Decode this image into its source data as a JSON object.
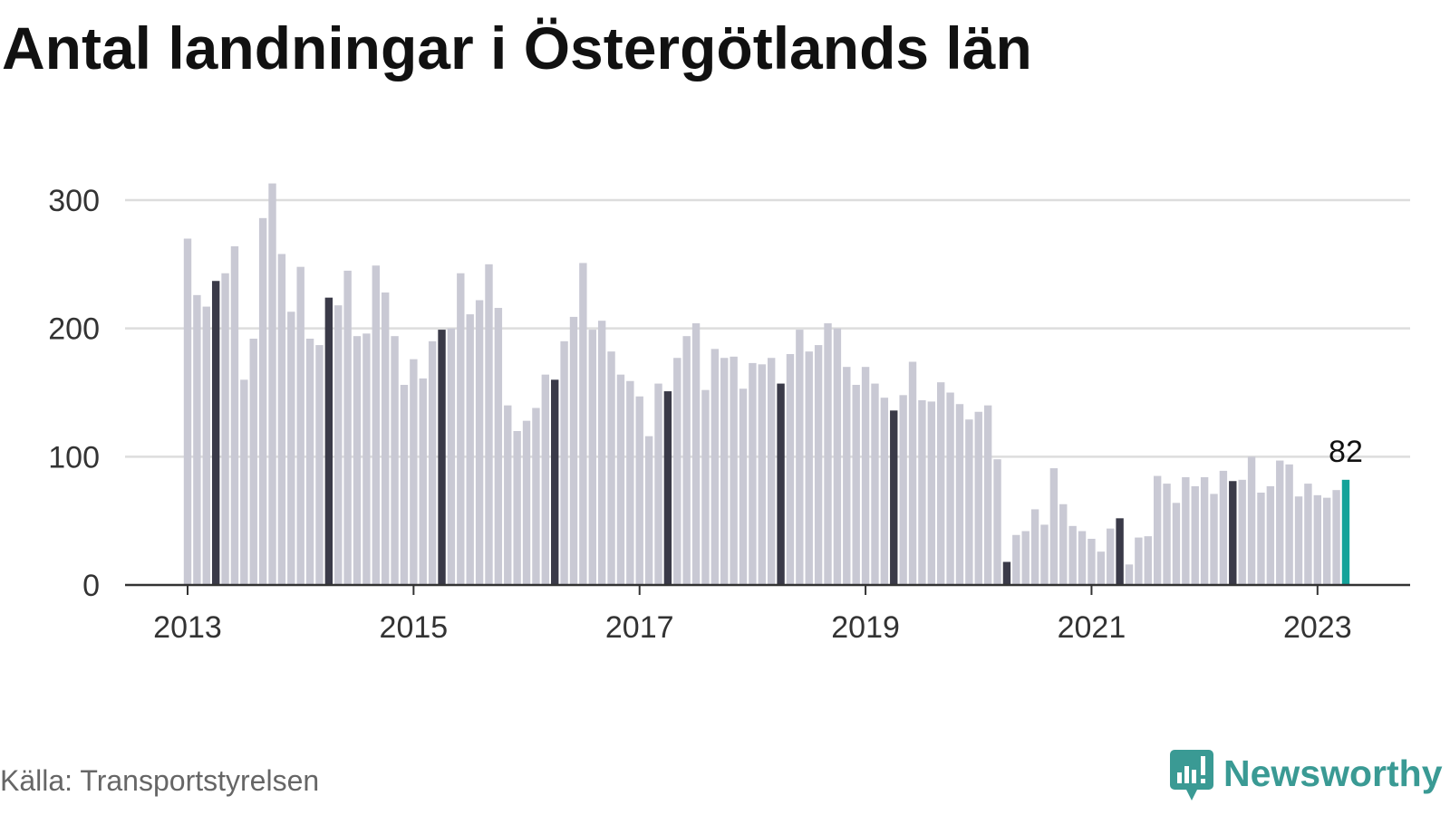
{
  "source": "Källa: Transportstyrelsen",
  "brand": {
    "name": "Newsworthy",
    "icon": "newsworthy-logo-icon"
  },
  "colors": {
    "bar": "#c9c9d4",
    "highlight": "#3a3a48",
    "current": "#14a39a",
    "grid": "#dddddd",
    "axis": "#333333",
    "brand": "#3a9a94"
  },
  "chart_data": {
    "type": "bar",
    "title": "Antal landningar i Östergötlands län",
    "xlabel": "",
    "ylabel": "",
    "xticks": [
      "2013",
      "2015",
      "2017",
      "2019",
      "2021",
      "2023"
    ],
    "yticks": [
      0,
      100,
      200,
      300
    ],
    "ylim": [
      0,
      300
    ],
    "grid": true,
    "x": [
      "2013-01",
      "2013-02",
      "2013-03",
      "2013-04",
      "2013-05",
      "2013-06",
      "2013-07",
      "2013-08",
      "2013-09",
      "2013-10",
      "2013-11",
      "2013-12",
      "2014-01",
      "2014-02",
      "2014-03",
      "2014-04",
      "2014-05",
      "2014-06",
      "2014-07",
      "2014-08",
      "2014-09",
      "2014-10",
      "2014-11",
      "2014-12",
      "2015-01",
      "2015-02",
      "2015-03",
      "2015-04",
      "2015-05",
      "2015-06",
      "2015-07",
      "2015-08",
      "2015-09",
      "2015-10",
      "2015-11",
      "2015-12",
      "2016-01",
      "2016-02",
      "2016-03",
      "2016-04",
      "2016-05",
      "2016-06",
      "2016-07",
      "2016-08",
      "2016-09",
      "2016-10",
      "2016-11",
      "2016-12",
      "2017-01",
      "2017-02",
      "2017-03",
      "2017-04",
      "2017-05",
      "2017-06",
      "2017-07",
      "2017-08",
      "2017-09",
      "2017-10",
      "2017-11",
      "2017-12",
      "2018-01",
      "2018-02",
      "2018-03",
      "2018-04",
      "2018-05",
      "2018-06",
      "2018-07",
      "2018-08",
      "2018-09",
      "2018-10",
      "2018-11",
      "2018-12",
      "2019-01",
      "2019-02",
      "2019-03",
      "2019-04",
      "2019-05",
      "2019-06",
      "2019-07",
      "2019-08",
      "2019-09",
      "2019-10",
      "2019-11",
      "2019-12",
      "2020-01",
      "2020-02",
      "2020-03",
      "2020-04",
      "2020-05",
      "2020-06",
      "2020-07",
      "2020-08",
      "2020-09",
      "2020-10",
      "2020-11",
      "2020-12",
      "2021-01",
      "2021-02",
      "2021-03",
      "2021-04",
      "2021-05",
      "2021-06",
      "2021-07",
      "2021-08",
      "2021-09",
      "2021-10",
      "2021-11",
      "2021-12",
      "2022-01",
      "2022-02",
      "2022-03",
      "2022-04",
      "2022-05",
      "2022-06",
      "2022-07",
      "2022-08",
      "2022-09",
      "2022-10",
      "2022-11",
      "2022-12",
      "2023-01",
      "2023-02",
      "2023-03",
      "2023-04"
    ],
    "values": [
      270,
      226,
      217,
      237,
      243,
      264,
      160,
      192,
      286,
      313,
      258,
      213,
      248,
      192,
      187,
      224,
      218,
      245,
      194,
      196,
      249,
      228,
      194,
      156,
      176,
      161,
      190,
      199,
      200,
      243,
      211,
      222,
      250,
      216,
      140,
      120,
      128,
      138,
      164,
      160,
      190,
      209,
      251,
      199,
      206,
      182,
      164,
      159,
      147,
      116,
      157,
      151,
      177,
      194,
      204,
      152,
      184,
      177,
      178,
      153,
      173,
      172,
      177,
      157,
      180,
      199,
      182,
      187,
      204,
      200,
      170,
      156,
      170,
      157,
      146,
      136,
      148,
      174,
      144,
      143,
      158,
      150,
      141,
      129,
      135,
      140,
      98,
      18,
      39,
      42,
      59,
      47,
      91,
      63,
      46,
      42,
      36,
      26,
      44,
      52,
      16,
      37,
      38,
      85,
      79,
      64,
      84,
      77,
      84,
      71,
      89,
      81,
      82,
      100,
      72,
      77,
      97,
      94,
      69,
      79,
      70,
      68,
      74,
      82
    ],
    "data_labels": [
      {
        "x": "2023-04",
        "text": "82"
      }
    ]
  }
}
